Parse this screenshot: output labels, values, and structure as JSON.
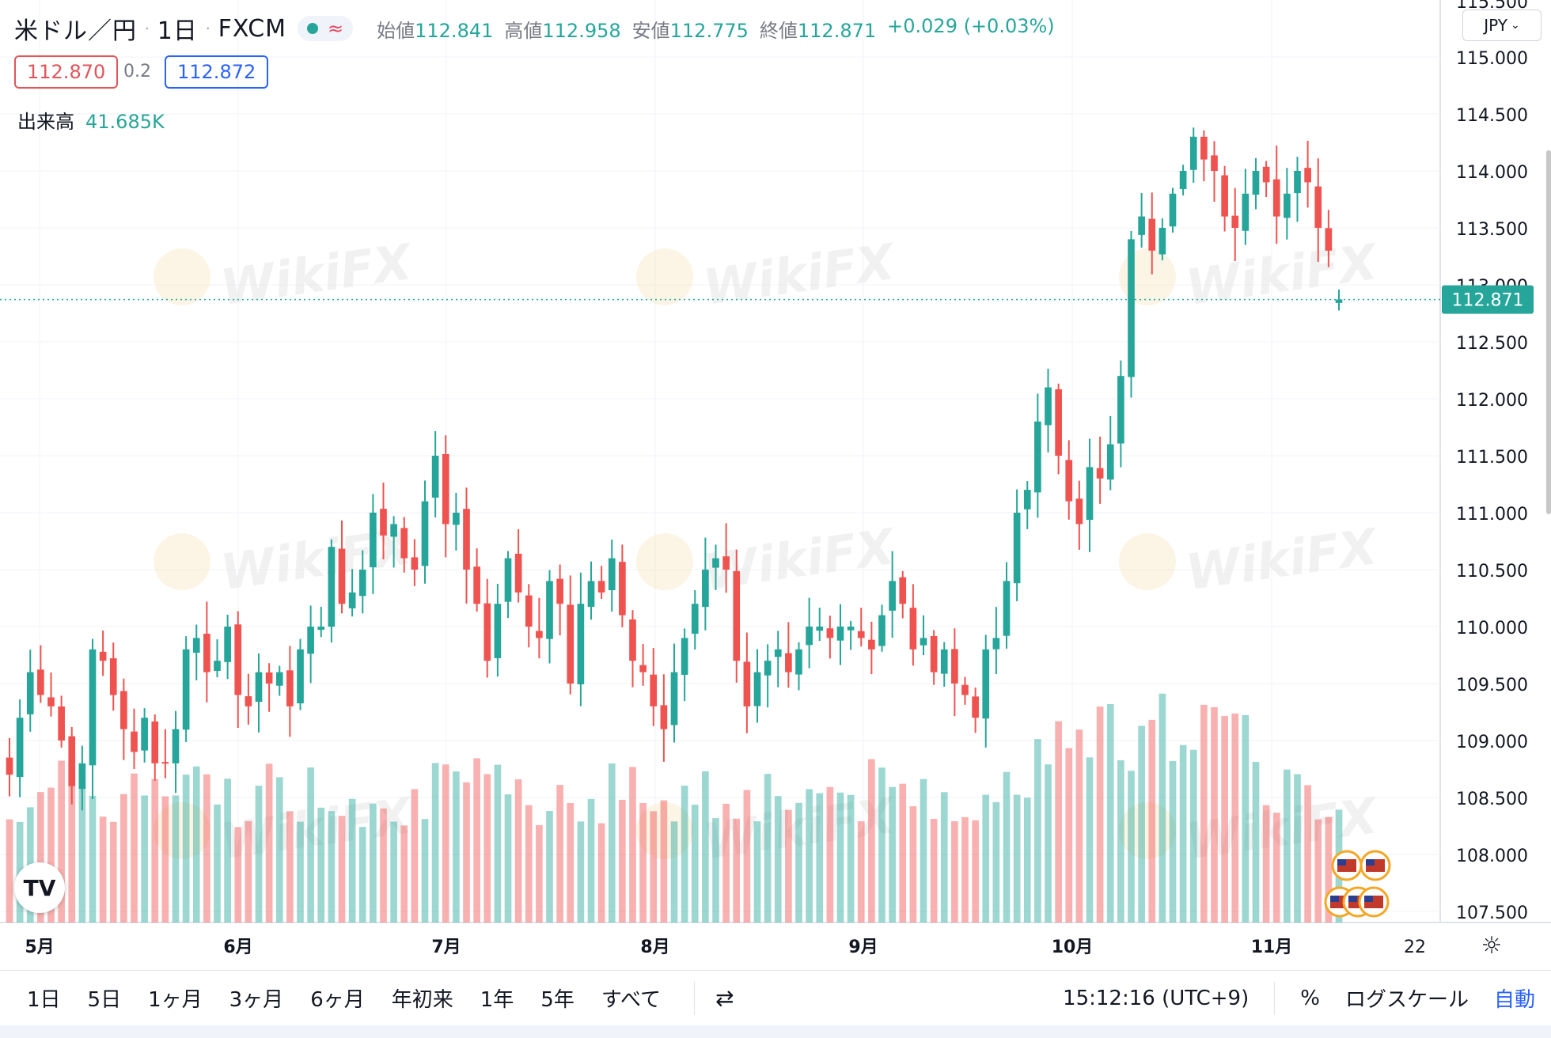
{
  "header": {
    "symbol": "米ドル／円",
    "interval": "1日",
    "exchange": "FXCM",
    "ohlc": {
      "open_label": "始値",
      "open": "112.841",
      "high_label": "高値",
      "high": "112.958",
      "low_label": "安値",
      "low": "112.775",
      "close_label": "終値",
      "close": "112.871",
      "change": "+0.029 (+0.03%)"
    },
    "bid": "112.870",
    "spread": "0.2",
    "ask": "112.872",
    "volume_label": "出来高",
    "volume_value": "41.685K",
    "currency": "JPY"
  },
  "price_axis": {
    "labels": [
      "115.000",
      "114.500",
      "114.000",
      "113.500",
      "113.000",
      "112.500",
      "112.000",
      "111.500",
      "111.000",
      "110.500",
      "110.000",
      "109.500",
      "109.000",
      "108.500",
      "108.000",
      "107.500"
    ],
    "top_partial": "115.500",
    "current_price": "112.871"
  },
  "time_axis": {
    "labels": [
      "5月",
      "6月",
      "7月",
      "8月",
      "9月",
      "10月",
      "11月",
      "22"
    ]
  },
  "watermark": "WikiFX",
  "logo_text": "TV",
  "bottom_bar": {
    "timeframes": [
      "1日",
      "5日",
      "1ヶ月",
      "3ヶ月",
      "6ヶ月",
      "年初来",
      "1年",
      "5年",
      "すべて"
    ],
    "clock": "15:12:16 (UTC+9)",
    "percent": "%",
    "log_scale": "ログスケール",
    "auto": "自動"
  },
  "colors": {
    "up": "#26a69a",
    "down": "#ef5350",
    "accent": "#2962ff",
    "price_tag": "#26a69a"
  },
  "chart_data": {
    "type": "candlestick",
    "title": "米ドル／円",
    "ylim": [
      107.4,
      115.5
    ],
    "y_ticks": [
      115.0,
      114.5,
      114.0,
      113.5,
      113.0,
      112.5,
      112.0,
      111.5,
      111.0,
      110.5,
      110.0,
      109.5,
      109.0,
      108.5,
      108.0,
      107.5
    ],
    "current_price": 112.871,
    "last_candle": {
      "open": 112.841,
      "high": 112.958,
      "low": 112.775,
      "close": 112.871
    },
    "closes": [
      108.7,
      109.2,
      109.6,
      109.4,
      109.3,
      109.0,
      108.6,
      108.8,
      109.8,
      109.7,
      109.4,
      109.1,
      108.9,
      109.2,
      108.8,
      108.8,
      109.1,
      109.8,
      109.9,
      109.6,
      109.7,
      110.0,
      109.4,
      109.3,
      109.6,
      109.5,
      109.6,
      109.3,
      109.8,
      110.0,
      110.0,
      110.7,
      110.2,
      110.3,
      110.5,
      111.0,
      110.8,
      110.9,
      110.6,
      110.5,
      111.1,
      111.5,
      110.9,
      111.0,
      110.5,
      110.2,
      109.7,
      110.2,
      110.6,
      110.3,
      110.0,
      109.9,
      110.4,
      110.2,
      109.5,
      110.2,
      110.4,
      110.3,
      110.6,
      110.1,
      109.7,
      109.6,
      109.3,
      109.1,
      109.6,
      109.9,
      110.2,
      110.5,
      110.6,
      110.5,
      109.7,
      109.3,
      109.6,
      109.7,
      109.8,
      109.6,
      109.8,
      110.0,
      110.0,
      109.9,
      110.0,
      110.0,
      109.9,
      109.8,
      110.1,
      110.4,
      110.2,
      109.8,
      109.9,
      109.6,
      109.8,
      109.5,
      109.4,
      109.2,
      109.8,
      109.9,
      110.4,
      111.0,
      111.2,
      111.8,
      112.1,
      111.5,
      111.1,
      110.9,
      111.4,
      111.3,
      111.6,
      112.2,
      113.4,
      113.6,
      113.3,
      113.5,
      113.8,
      114.0,
      114.3,
      114.1,
      114.0,
      113.6,
      113.5,
      113.8,
      114.0,
      113.9,
      113.6,
      113.8,
      114.0,
      113.9,
      113.5,
      113.3,
      112.871
    ]
  }
}
